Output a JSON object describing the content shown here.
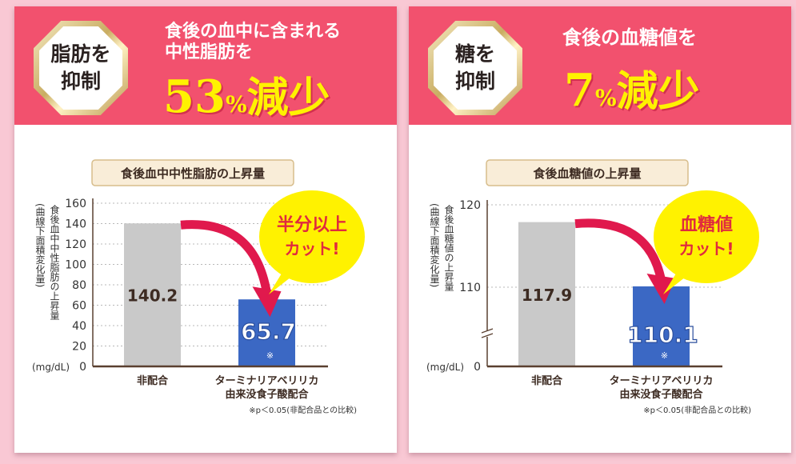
{
  "panels": [
    {
      "badge": [
        "脂肪を",
        "抑制"
      ],
      "headline": [
        "食後の血中に含まれる",
        "中性脂肪を"
      ],
      "big": {
        "num": "53",
        "pct": "%",
        "word": "減少"
      },
      "chart_title": "食後血中中性脂肪の上昇量",
      "callout": [
        "半分以上",
        "カット!"
      ],
      "footnote": "※p＜0.05(非配合品との比較)"
    },
    {
      "badge": [
        "糖を",
        "抑制"
      ],
      "headline": [
        "食後の血糖値を"
      ],
      "big": {
        "num": "7",
        "pct": "%",
        "word": "減少"
      },
      "chart_title": "食後血糖値の上昇量",
      "callout": [
        "血糖値",
        "カット!"
      ],
      "footnote": "※p＜0.05(非配合品との比較)"
    }
  ],
  "chart_data": [
    {
      "type": "bar",
      "title": "食後血中中性脂肪の上昇量",
      "ylabel": "食後血中中性脂肪の上昇量",
      "ylabel_sub": "(曲線下面積変化量)",
      "unit": "(mg/dL)",
      "yticks": [
        0,
        20,
        40,
        60,
        80,
        100,
        120,
        140,
        160
      ],
      "ylim": [
        0,
        160
      ],
      "axis_break": false,
      "grid": true,
      "categories": [
        [
          "非配合"
        ],
        [
          "ターミナリアベリリカ",
          "由来没食子酸配合"
        ]
      ],
      "values": [
        140.2,
        65.7
      ],
      "value_labels": [
        "140.2",
        "65.7"
      ],
      "marks": [
        "",
        "※"
      ],
      "colors": [
        "#c9c9c9",
        "#3b68c4"
      ]
    },
    {
      "type": "bar",
      "title": "食後血糖値の上昇量",
      "ylabel": "食後血糖値の上昇量",
      "ylabel_sub": "(曲線下面積変化量)",
      "unit": "(mg/dL)",
      "yticks": [
        0,
        110,
        120
      ],
      "ylim": [
        0,
        120
      ],
      "axis_break": true,
      "grid": true,
      "categories": [
        [
          "非配合"
        ],
        [
          "ターミナリアベリリカ",
          "由来没食子酸配合"
        ]
      ],
      "values": [
        117.9,
        110.1
      ],
      "value_labels": [
        "117.9",
        "110.1"
      ],
      "marks": [
        "",
        "※"
      ],
      "colors": [
        "#c9c9c9",
        "#3b68c4"
      ]
    }
  ],
  "colors": {
    "banner": "#f2516e",
    "accent_yellow": "#fff200",
    "arrow": "#e0194d",
    "callout": "#fff200",
    "callout_text": "#e02a3e",
    "title_box_fill": "#f9edd8",
    "title_box_border": "#d7bd8c",
    "axis": "#5a4030",
    "page_bg": "#f9c8d4"
  }
}
